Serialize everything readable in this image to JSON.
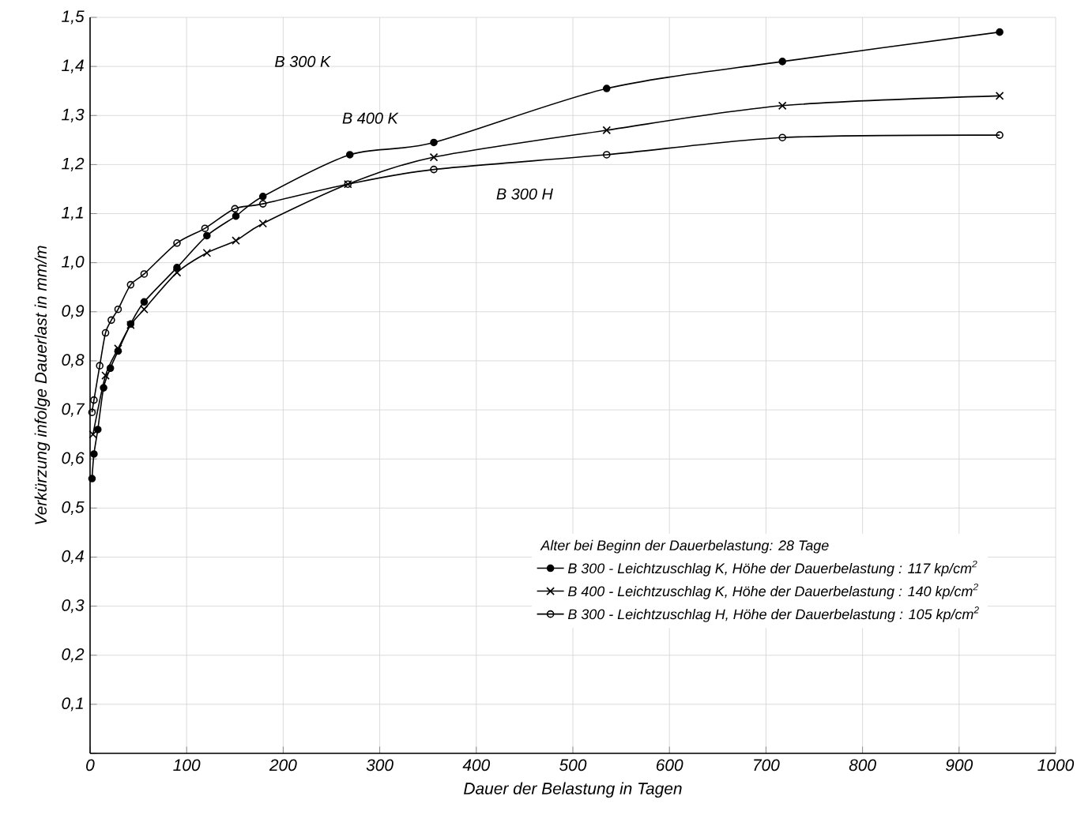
{
  "chart_data": {
    "type": "line",
    "xlabel": "Dauer der Belastung in Tagen",
    "ylabel": "Verkürzung infolge Dauerlast in mm/m",
    "legend_title": "Alter bei Beginn der Dauerbelastung: 28 Tage",
    "legend": "bottom right",
    "grid": true,
    "line_style": "solid",
    "xlim": [
      0,
      1000
    ],
    "ylim": [
      0,
      1.5
    ],
    "xticks": [
      0,
      100,
      200,
      300,
      400,
      500,
      600,
      700,
      800,
      900,
      1000
    ],
    "yticks": [
      {
        "value": 0,
        "label": null
      },
      {
        "value": 0.1,
        "label": "0,1"
      },
      {
        "value": 0.2,
        "label": "0,2"
      },
      {
        "value": 0.3,
        "label": "0,3"
      },
      {
        "value": 0.4,
        "label": "0,4"
      },
      {
        "value": 0.5,
        "label": "0,5"
      },
      {
        "value": 0.6,
        "label": "0,6"
      },
      {
        "value": 0.7,
        "label": "0,7"
      },
      {
        "value": 0.8,
        "label": "0,8"
      },
      {
        "value": 0.9,
        "label": "0,9"
      },
      {
        "value": 1.0,
        "label": "1,0"
      },
      {
        "value": 1.1,
        "label": "1,1"
      },
      {
        "value": 1.2,
        "label": "1,2"
      },
      {
        "value": 1.3,
        "label": "1,3"
      },
      {
        "value": 1.4,
        "label": "1,4"
      },
      {
        "value": 1.5,
        "label": "1,5"
      }
    ],
    "series": [
      {
        "name": "B 300 - Leichtzuschlag K, Höhe der Dauerbelastung : 117 kp/cm$^{2}$",
        "color": "#000000",
        "marker": "circle",
        "x": [
          2,
          4,
          8,
          14,
          21,
          29,
          42,
          56,
          90,
          121,
          151,
          179,
          269,
          356,
          535,
          717,
          942
        ],
        "values": [
          0.56,
          0.61,
          0.66,
          0.745,
          0.785,
          0.82,
          0.875,
          0.92,
          0.99,
          1.055,
          1.095,
          1.135,
          1.22,
          1.245,
          1.355,
          1.41,
          1.47
        ]
      },
      {
        "name": "B 400 - Leichtzuschlag K, Höhe der Dauerbelastung : 140 kp/cm$^{2}$",
        "color": "#000000",
        "marker": "cross",
        "x": [
          3,
          16,
          29,
          42,
          56,
          90,
          121,
          151,
          179,
          267,
          356,
          535,
          717,
          942
        ],
        "values": [
          0.65,
          0.77,
          0.825,
          0.873,
          0.905,
          0.98,
          1.02,
          1.045,
          1.08,
          1.16,
          1.215,
          1.27,
          1.32,
          1.34
        ]
      },
      {
        "name": "B 300 - Leichtzuschlag H, Höhe der Dauerbelastung : 105 kp/cm$^{2}$",
        "color": "#000000",
        "marker": "open circle",
        "x": [
          2,
          4,
          10,
          16,
          22,
          29,
          42,
          56,
          90,
          119,
          150,
          179,
          267,
          356,
          535,
          717,
          942
        ],
        "values": [
          0.695,
          0.72,
          0.79,
          0.857,
          0.883,
          0.905,
          0.955,
          0.977,
          1.04,
          1.07,
          1.11,
          1.12,
          1.16,
          1.19,
          1.22,
          1.255,
          1.26
        ]
      }
    ],
    "annotations": [
      "B 300 K",
      "B 400 K",
      "B 300 H"
    ]
  }
}
